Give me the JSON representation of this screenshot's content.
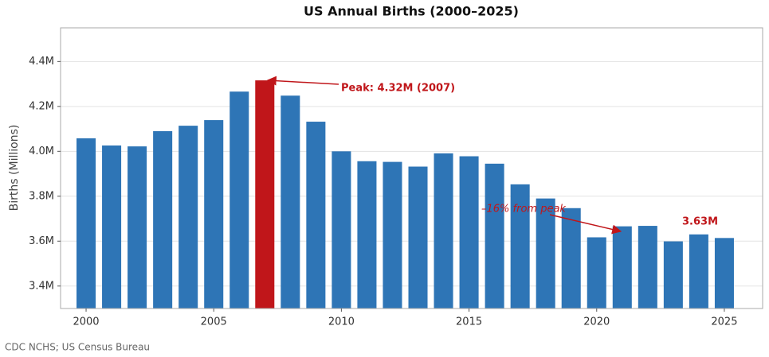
{
  "chart_data": {
    "type": "bar",
    "title": "US Annual Births (2000–2025)",
    "y_label": "Births (Millions)",
    "x": [
      2000,
      2001,
      2002,
      2003,
      2004,
      2005,
      2006,
      2007,
      2008,
      2009,
      2010,
      2011,
      2012,
      2013,
      2014,
      2015,
      2016,
      2017,
      2018,
      2019,
      2020,
      2021,
      2022,
      2023,
      2024,
      2025
    ],
    "values": [
      4.058,
      4.026,
      4.022,
      4.09,
      4.114,
      4.139,
      4.266,
      4.316,
      4.248,
      4.132,
      4.0,
      3.956,
      3.953,
      3.932,
      3.991,
      3.978,
      3.945,
      3.853,
      3.79,
      3.747,
      3.617,
      3.666,
      3.668,
      3.599,
      3.63,
      3.614
    ],
    "colors": [
      "#2e75b6",
      "#2e75b6",
      "#2e75b6",
      "#2e75b6",
      "#2e75b6",
      "#2e75b6",
      "#2e75b6",
      "#c0161a",
      "#2e75b6",
      "#2e75b6",
      "#2e75b6",
      "#2e75b6",
      "#2e75b6",
      "#2e75b6",
      "#2e75b6",
      "#2e75b6",
      "#2e75b6",
      "#2e75b6",
      "#2e75b6",
      "#2e75b6",
      "#2e75b6",
      "#2e75b6",
      "#2e75b6",
      "#2e75b6",
      "#2e75b6",
      "#2e75b6"
    ],
    "xlim": [
      1999,
      2026.5
    ],
    "xticks": [
      2000,
      2005,
      2010,
      2015,
      2020,
      2025
    ],
    "ylim": [
      3.3,
      4.55
    ],
    "yticks": [
      {
        "value": 3.4,
        "label": "3.4M"
      },
      {
        "value": 3.6,
        "label": "3.6M"
      },
      {
        "value": 3.8,
        "label": "3.8M"
      },
      {
        "value": 4.0,
        "label": "4.0M"
      },
      {
        "value": 4.2,
        "label": "4.2M"
      },
      {
        "value": 4.4,
        "label": "4.4M"
      }
    ],
    "grid": true,
    "annotations": [
      "Peak: 4.32M (2007)",
      "–16% from peak",
      "3.63M"
    ],
    "source": "CDC NCHS;  US Census Bureau"
  }
}
